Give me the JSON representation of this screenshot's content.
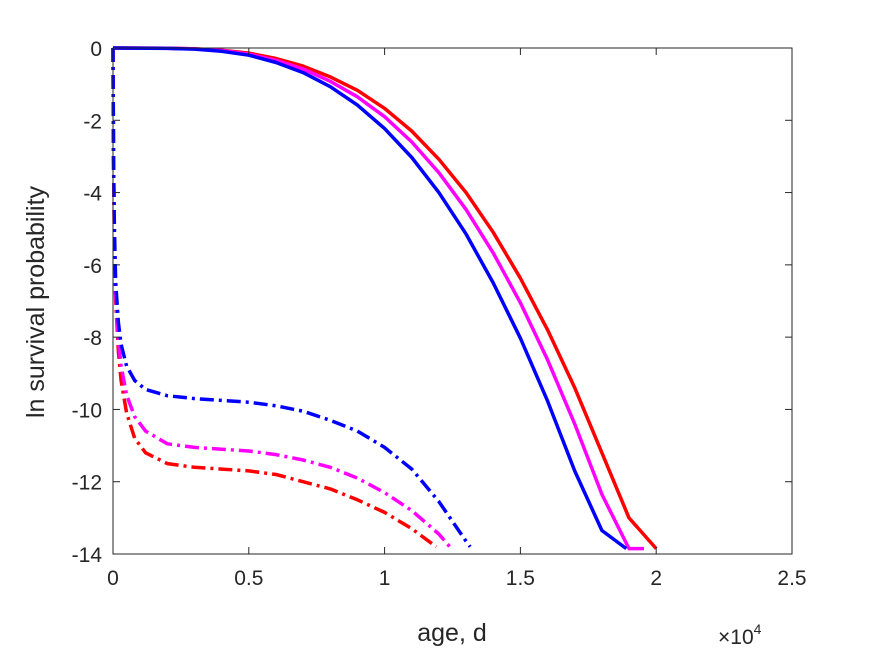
{
  "chart_data": {
    "type": "line",
    "title": "",
    "xlabel": "age, d",
    "ylabel": "ln survival probability",
    "x_multiplier_base": "×10",
    "x_multiplier_exponent": "4",
    "xlim": [
      0,
      25000
    ],
    "ylim": [
      -14,
      0
    ],
    "x_ticks": [
      0,
      0.5,
      1,
      1.5,
      2,
      2.5
    ],
    "x_tick_labels": [
      "0",
      "0.5",
      "1",
      "1.5",
      "2",
      "2.5"
    ],
    "y_ticks": [
      0,
      -2,
      -4,
      -6,
      -8,
      -10,
      -12,
      -14
    ],
    "y_tick_labels": [
      "0",
      "-2",
      "-4",
      "-6",
      "-8",
      "-10",
      "-12",
      "-14"
    ],
    "grid": false,
    "legend": "none",
    "series": [
      {
        "color": "#ff0000",
        "style": "solid",
        "x": [
          0,
          50,
          2000,
          3000,
          4000,
          5000,
          6000,
          7000,
          8000,
          9000,
          10000,
          11000,
          12000,
          13000,
          14000,
          15000,
          16000,
          17000,
          18000,
          19000,
          20000
        ],
        "y": [
          0,
          0,
          -0.005,
          -0.02,
          -0.06,
          -0.14,
          -0.29,
          -0.5,
          -0.8,
          -1.17,
          -1.67,
          -2.3,
          -3.08,
          -4.0,
          -5.1,
          -6.37,
          -7.8,
          -9.4,
          -11.2,
          -13.0,
          -13.85
        ]
      },
      {
        "color": "#ff00ff",
        "style": "solid",
        "x": [
          0,
          50,
          2000,
          3000,
          4000,
          5000,
          6000,
          7000,
          8000,
          9000,
          10000,
          11000,
          12000,
          13000,
          14000,
          15000,
          16000,
          17000,
          18000,
          19000,
          19550
        ],
        "y": [
          0,
          0,
          -0.007,
          -0.025,
          -0.07,
          -0.17,
          -0.34,
          -0.58,
          -0.92,
          -1.35,
          -1.9,
          -2.6,
          -3.45,
          -4.47,
          -5.67,
          -7.05,
          -8.63,
          -10.4,
          -12.35,
          -13.85,
          -13.85
        ]
      },
      {
        "color": "#0000ff",
        "style": "solid",
        "x": [
          0,
          50,
          2000,
          3000,
          4000,
          5000,
          6000,
          7000,
          8000,
          9000,
          10000,
          11000,
          12000,
          13000,
          14000,
          15000,
          16000,
          17000,
          18000,
          18900
        ],
        "y": [
          0,
          0,
          -0.01,
          -0.03,
          -0.09,
          -0.2,
          -0.4,
          -0.68,
          -1.07,
          -1.58,
          -2.23,
          -3.03,
          -4.0,
          -5.15,
          -6.5,
          -8.03,
          -9.77,
          -11.7,
          -13.35,
          -13.85
        ]
      },
      {
        "color": "#ff0000",
        "style": "dashdot",
        "x": [
          0,
          20,
          50,
          100,
          200,
          300,
          500,
          800,
          1200,
          2000,
          3000,
          4000,
          5000,
          6000,
          7000,
          8000,
          9000,
          10000,
          11000,
          11900
        ],
        "y": [
          0,
          -3.0,
          -5.5,
          -7.0,
          -8.4,
          -9.2,
          -10.1,
          -10.8,
          -11.2,
          -11.5,
          -11.6,
          -11.65,
          -11.7,
          -11.8,
          -12.0,
          -12.2,
          -12.5,
          -12.85,
          -13.3,
          -13.8
        ]
      },
      {
        "color": "#ff00ff",
        "style": "dashdot",
        "x": [
          0,
          20,
          50,
          100,
          200,
          300,
          500,
          800,
          1200,
          2000,
          3000,
          4000,
          5000,
          6000,
          7000,
          8000,
          9000,
          10000,
          11000,
          12000,
          12400
        ],
        "y": [
          0,
          -3.0,
          -5.3,
          -6.8,
          -8.1,
          -8.8,
          -9.6,
          -10.2,
          -10.6,
          -10.95,
          -11.05,
          -11.1,
          -11.15,
          -11.25,
          -11.4,
          -11.6,
          -11.9,
          -12.3,
          -12.8,
          -13.45,
          -13.8
        ]
      },
      {
        "color": "#0000ff",
        "style": "dashdot",
        "x": [
          0,
          20,
          50,
          100,
          200,
          300,
          500,
          800,
          1200,
          2000,
          3000,
          4000,
          5000,
          6000,
          7000,
          8000,
          9000,
          10000,
          11000,
          12000,
          13000,
          13150
        ],
        "y": [
          0,
          -3.0,
          -5.0,
          -6.5,
          -7.6,
          -8.2,
          -8.8,
          -9.2,
          -9.45,
          -9.62,
          -9.7,
          -9.75,
          -9.8,
          -9.9,
          -10.05,
          -10.3,
          -10.6,
          -11.05,
          -11.65,
          -12.55,
          -13.65,
          -13.8
        ]
      }
    ]
  }
}
